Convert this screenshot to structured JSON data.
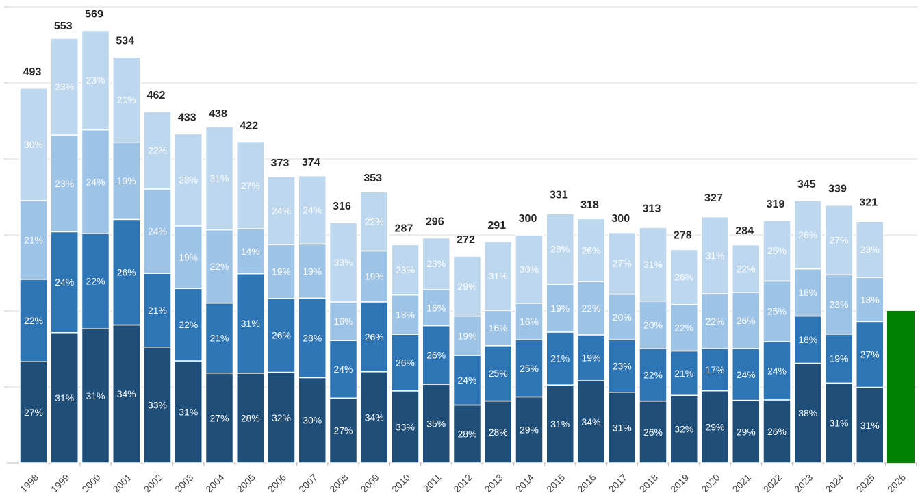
{
  "chart_data": {
    "type": "bar",
    "stacked": true,
    "title": "",
    "xlabel": "",
    "ylabel": "",
    "ylim": [
      0,
      600
    ],
    "grid": true,
    "legend": "none",
    "categories": [
      "1998",
      "1999",
      "2000",
      "2001",
      "2002",
      "2003",
      "2004",
      "2005",
      "2006",
      "2007",
      "2008",
      "2009",
      "2010",
      "2011",
      "2012",
      "2013",
      "2014",
      "2015",
      "2016",
      "2017",
      "2018",
      "2019",
      "2020",
      "2021",
      "2022",
      "2023",
      "2024",
      "2025",
      "2026"
    ],
    "totals": [
      493,
      553,
      569,
      534,
      462,
      433,
      438,
      422,
      373,
      374,
      316,
      353,
      287,
      296,
      272,
      291,
      300,
      331,
      318,
      300,
      313,
      278,
      327,
      284,
      319,
      345,
      339,
      321,
      200
    ],
    "total_labels": [
      "493",
      "553",
      "569",
      "534",
      "462",
      "433",
      "438",
      "422",
      "373",
      "374",
      "316",
      "353",
      "287",
      "296",
      "272",
      "291",
      "300",
      "331",
      "318",
      "300",
      "313",
      "278",
      "327",
      "284",
      "319",
      "345",
      "339",
      "321",
      ""
    ],
    "series": [
      {
        "color": "#1f4e79",
        "label_color": "#ffffff",
        "percent": [
          27,
          31,
          31,
          34,
          33,
          31,
          27,
          28,
          32,
          30,
          27,
          34,
          33,
          35,
          28,
          28,
          29,
          31,
          34,
          31,
          26,
          32,
          29,
          29,
          26,
          38,
          31,
          31,
          null
        ]
      },
      {
        "color": "#2e75b6",
        "label_color": "#ffffff",
        "percent": [
          22,
          24,
          22,
          26,
          21,
          22,
          21,
          31,
          26,
          28,
          24,
          26,
          26,
          26,
          24,
          25,
          25,
          21,
          19,
          23,
          22,
          21,
          17,
          24,
          24,
          18,
          19,
          27,
          null
        ]
      },
      {
        "color": "#9dc3e6",
        "label_color": "#ffffff",
        "percent": [
          21,
          23,
          24,
          19,
          24,
          19,
          22,
          14,
          19,
          19,
          16,
          19,
          18,
          16,
          19,
          16,
          16,
          19,
          22,
          20,
          20,
          22,
          22,
          26,
          25,
          18,
          23,
          18,
          null
        ]
      },
      {
        "color": "#bdd7ee",
        "label_color": "#ffffff",
        "percent": [
          30,
          23,
          23,
          21,
          22,
          28,
          31,
          27,
          24,
          24,
          33,
          22,
          23,
          23,
          29,
          31,
          30,
          28,
          26,
          27,
          31,
          26,
          31,
          22,
          25,
          26,
          27,
          23,
          null
        ]
      }
    ],
    "highlight": {
      "category": "2026",
      "value": 200,
      "color": "#008000"
    },
    "colors": {
      "grid": "#d9d9d9",
      "axis": "#bfbfbf",
      "total_text": "#262626",
      "tick_text": "#404040"
    }
  }
}
